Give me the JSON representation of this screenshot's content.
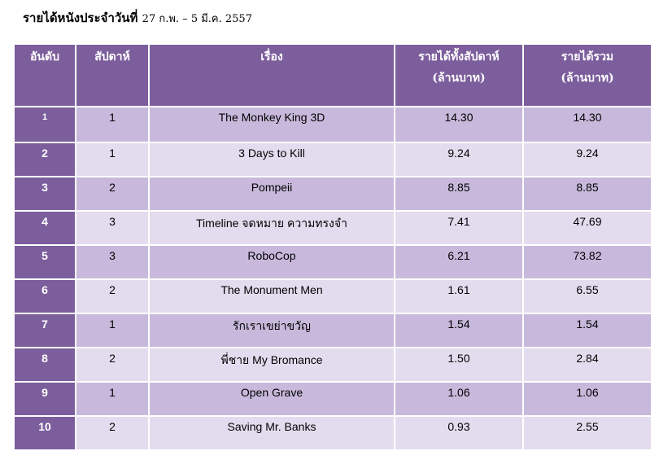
{
  "title": {
    "main": "รายได้หนังประจำวันที่",
    "date": "27 ก.พ. – 5 มี.ค. 2557"
  },
  "headers": {
    "rank": "อันดับ",
    "week": "สัปดาห์",
    "movie": "เรื่อง",
    "weekly_line1": "รายได้ทั้งสัปดาห์",
    "weekly_line2": "(ล้านบาท)",
    "total_line1": "รายได้รวม",
    "total_line2": "(ล้านบาท)"
  },
  "rows": [
    {
      "rank": "1",
      "week": "1",
      "movie": "The Monkey King 3D",
      "weekly": "14.30",
      "total": "14.30"
    },
    {
      "rank": "2",
      "week": "1",
      "movie": "3 Days to Kill",
      "weekly": "9.24",
      "total": "9.24"
    },
    {
      "rank": "3",
      "week": "2",
      "movie": "Pompeii",
      "weekly": "8.85",
      "total": "8.85"
    },
    {
      "rank": "4",
      "week": "3",
      "movie": "Timeline จดหมาย ความทรงจำ",
      "weekly": "7.41",
      "total": "47.69"
    },
    {
      "rank": "5",
      "week": "3",
      "movie": "RoboCop",
      "weekly": "6.21",
      "total": "73.82"
    },
    {
      "rank": "6",
      "week": "2",
      "movie": "The Monument Men",
      "weekly": "1.61",
      "total": "6.55"
    },
    {
      "rank": "7",
      "week": "1",
      "movie": "รักเราเขย่าขวัญ",
      "weekly": "1.54",
      "total": "1.54"
    },
    {
      "rank": "8",
      "week": "2",
      "movie": "พี่ชาย My Bromance",
      "weekly": "1.50",
      "total": "2.84"
    },
    {
      "rank": "9",
      "week": "1",
      "movie": "Open Grave",
      "weekly": "1.06",
      "total": "1.06"
    },
    {
      "rank": "10",
      "week": "2",
      "movie": "Saving Mr. Banks",
      "weekly": "0.93",
      "total": "2.55"
    }
  ]
}
